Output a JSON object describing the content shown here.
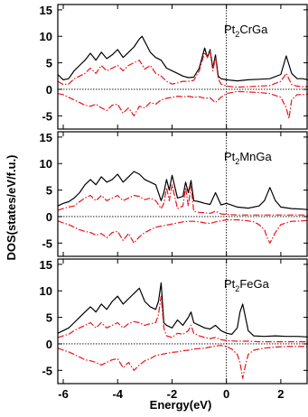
{
  "chart_data": {
    "type": "line",
    "xlabel": "Energy(eV)",
    "ylabel": "DOS(states/eV/f.u.)",
    "xlim": [
      -6.2,
      3.0
    ],
    "xticks": [
      -6,
      -4,
      -2,
      0,
      2
    ],
    "yticks": [
      -5,
      0,
      5,
      10,
      15
    ],
    "fermi_level": 0,
    "colors": {
      "total": "#000000",
      "partial": "#e8141b"
    },
    "panels": [
      {
        "label": {
          "base": "Pt",
          "sub": "2",
          "rest": "CrGa"
        },
        "ylim": [
          -7.5,
          16
        ],
        "series": [
          {
            "role": "total",
            "x": [
              -6.2,
              -6.0,
              -5.8,
              -5.6,
              -5.4,
              -5.2,
              -5.0,
              -4.8,
              -4.6,
              -4.4,
              -4.2,
              -4.0,
              -3.8,
              -3.6,
              -3.4,
              -3.2,
              -3.1,
              -3.0,
              -2.8,
              -2.6,
              -2.4,
              -2.2,
              -2.0,
              -1.8,
              -1.6,
              -1.4,
              -1.2,
              -1.0,
              -0.8,
              -0.7,
              -0.6,
              -0.5,
              -0.4,
              -0.3,
              -0.2,
              0.0,
              0.4,
              0.8,
              1.2,
              1.6,
              2.0,
              2.2,
              2.4,
              2.6,
              2.8,
              3.0
            ],
            "y": [
              2.8,
              1.8,
              2.0,
              3.5,
              4.5,
              5.5,
              6.8,
              5.5,
              7.0,
              5.8,
              6.5,
              7.5,
              6.0,
              7.0,
              8.0,
              9.5,
              10.0,
              9.0,
              7.0,
              6.0,
              5.5,
              4.0,
              3.5,
              3.0,
              2.5,
              2.2,
              2.3,
              4.0,
              7.8,
              6.0,
              7.5,
              4.0,
              6.5,
              2.5,
              2.0,
              1.8,
              1.6,
              1.8,
              1.9,
              2.0,
              2.8,
              6.3,
              3.0,
              2.0,
              2.0,
              1.8
            ]
          },
          {
            "role": "partial",
            "x": [
              -6.2,
              -6.0,
              -5.8,
              -5.6,
              -5.4,
              -5.2,
              -5.0,
              -4.8,
              -4.6,
              -4.4,
              -4.2,
              -4.0,
              -3.8,
              -3.6,
              -3.4,
              -3.2,
              -3.0,
              -2.8,
              -2.6,
              -2.4,
              -2.2,
              -2.0,
              -1.8,
              -1.6,
              -1.4,
              -1.2,
              -1.0,
              -0.8,
              -0.7,
              -0.6,
              -0.5,
              -0.4,
              -0.3,
              -0.2,
              0.0,
              0.4,
              0.8,
              1.2,
              1.6,
              2.0,
              2.2,
              2.4,
              2.6,
              2.8,
              3.0
            ],
            "y": [
              1.5,
              0.9,
              1.0,
              2.0,
              2.5,
              3.0,
              4.0,
              3.0,
              4.5,
              3.5,
              4.0,
              4.5,
              3.5,
              4.5,
              5.0,
              5.5,
              3.8,
              4.5,
              3.0,
              2.5,
              1.5,
              1.0,
              1.2,
              1.5,
              1.5,
              1.7,
              3.5,
              7.0,
              6.0,
              7.2,
              3.5,
              6.0,
              2.0,
              1.0,
              0.6,
              0.4,
              0.5,
              0.6,
              0.7,
              1.5,
              3.0,
              0.9,
              0.6,
              0.5,
              0.5
            ]
          },
          {
            "role": "partial",
            "x": [
              -6.2,
              -6.0,
              -5.8,
              -5.6,
              -5.4,
              -5.2,
              -5.0,
              -4.8,
              -4.6,
              -4.4,
              -4.2,
              -4.0,
              -3.8,
              -3.6,
              -3.4,
              -3.2,
              -3.0,
              -2.8,
              -2.6,
              -2.4,
              -2.2,
              -2.0,
              -1.8,
              -1.6,
              -1.4,
              -1.2,
              -1.0,
              -0.8,
              -0.6,
              -0.4,
              -0.2,
              0.0,
              0.4,
              0.8,
              1.2,
              1.6,
              2.0,
              2.2,
              2.3,
              2.4,
              2.6,
              2.8,
              3.0
            ],
            "y": [
              -0.8,
              -1.0,
              -1.5,
              -2.0,
              -2.5,
              -3.0,
              -3.2,
              -2.8,
              -3.5,
              -4.0,
              -3.0,
              -2.8,
              -4.5,
              -3.5,
              -5.0,
              -3.2,
              -3.5,
              -2.5,
              -2.8,
              -2.0,
              -1.7,
              -1.5,
              -1.3,
              -1.4,
              -1.3,
              -1.5,
              -1.4,
              -1.7,
              -1.6,
              -2.5,
              -1.5,
              -0.8,
              -0.4,
              -0.5,
              -0.6,
              -0.8,
              -1.5,
              -3.5,
              -5.5,
              -2.0,
              -1.0,
              -1.0,
              -0.9
            ]
          }
        ]
      },
      {
        "label": {
          "base": "Pt",
          "sub": "2",
          "rest": "MnGa"
        },
        "ylim": [
          -7.5,
          16
        ],
        "series": [
          {
            "role": "total",
            "x": [
              -6.2,
              -6.0,
              -5.8,
              -5.6,
              -5.4,
              -5.2,
              -5.0,
              -4.8,
              -4.6,
              -4.4,
              -4.2,
              -4.0,
              -3.8,
              -3.6,
              -3.4,
              -3.2,
              -3.0,
              -2.8,
              -2.6,
              -2.4,
              -2.3,
              -2.2,
              -2.1,
              -2.0,
              -1.8,
              -1.6,
              -1.5,
              -1.4,
              -1.3,
              -1.2,
              -1.0,
              -0.8,
              -0.6,
              -0.4,
              -0.2,
              0.0,
              0.4,
              0.8,
              1.2,
              1.4,
              1.6,
              1.8,
              2.0,
              2.4,
              2.8,
              3.0
            ],
            "y": [
              2.0,
              2.5,
              2.8,
              3.5,
              4.5,
              6.0,
              7.0,
              6.0,
              7.5,
              6.5,
              7.0,
              8.0,
              6.5,
              7.5,
              8.5,
              8.0,
              7.0,
              6.5,
              6.0,
              3.0,
              4.5,
              7.0,
              5.0,
              7.8,
              3.5,
              3.8,
              6.5,
              4.5,
              6.8,
              3.0,
              2.8,
              2.5,
              2.3,
              4.5,
              2.2,
              2.5,
              1.8,
              1.6,
              2.0,
              3.0,
              5.5,
              3.0,
              1.8,
              1.5,
              1.4,
              1.3
            ]
          },
          {
            "role": "partial",
            "x": [
              -6.2,
              -6.0,
              -5.8,
              -5.6,
              -5.4,
              -5.2,
              -5.0,
              -4.8,
              -4.6,
              -4.4,
              -4.2,
              -4.0,
              -3.8,
              -3.6,
              -3.4,
              -3.2,
              -3.0,
              -2.8,
              -2.6,
              -2.4,
              -2.3,
              -2.2,
              -2.1,
              -2.0,
              -1.8,
              -1.6,
              -1.5,
              -1.4,
              -1.3,
              -1.2,
              -1.0,
              -0.8,
              -0.6,
              -0.4,
              -0.2,
              0.0,
              0.4,
              0.8,
              1.2,
              1.6,
              2.0,
              2.4,
              2.8,
              3.0
            ],
            "y": [
              1.2,
              1.5,
              1.8,
              2.0,
              2.8,
              3.5,
              4.0,
              3.0,
              4.0,
              3.0,
              3.5,
              4.0,
              3.0,
              3.5,
              4.0,
              3.8,
              3.2,
              3.5,
              3.0,
              1.5,
              2.5,
              5.5,
              3.0,
              6.0,
              1.5,
              2.0,
              5.5,
              2.0,
              5.8,
              1.0,
              0.8,
              0.7,
              0.6,
              1.0,
              0.5,
              0.4,
              0.3,
              0.3,
              0.3,
              0.3,
              0.3,
              0.3,
              0.3,
              0.3
            ]
          },
          {
            "role": "partial",
            "x": [
              -6.2,
              -6.0,
              -5.8,
              -5.6,
              -5.4,
              -5.2,
              -5.0,
              -4.8,
              -4.6,
              -4.4,
              -4.2,
              -4.0,
              -3.8,
              -3.6,
              -3.4,
              -3.2,
              -3.0,
              -2.8,
              -2.6,
              -2.4,
              -2.2,
              -2.0,
              -1.8,
              -1.6,
              -1.4,
              -1.2,
              -1.0,
              -0.8,
              -0.6,
              -0.4,
              -0.2,
              0.0,
              0.4,
              0.8,
              1.0,
              1.2,
              1.4,
              1.5,
              1.6,
              1.8,
              2.0,
              2.4,
              2.8,
              3.0
            ],
            "y": [
              -0.8,
              -1.2,
              -1.5,
              -2.0,
              -2.5,
              -2.8,
              -3.0,
              -3.5,
              -3.2,
              -4.0,
              -3.0,
              -2.8,
              -4.5,
              -3.2,
              -5.0,
              -3.8,
              -3.0,
              -2.5,
              -2.0,
              -1.8,
              -1.6,
              -1.4,
              -1.2,
              -1.0,
              -0.9,
              -0.9,
              -1.0,
              -1.2,
              -1.3,
              -1.0,
              -0.8,
              -0.6,
              -0.6,
              -0.8,
              -1.0,
              -1.5,
              -2.5,
              -4.0,
              -5.0,
              -3.0,
              -1.5,
              -0.9,
              -0.8,
              -0.7
            ]
          }
        ]
      },
      {
        "label": {
          "base": "Pt",
          "sub": "2",
          "rest": "FeGa"
        },
        "ylim": [
          -7.5,
          16
        ],
        "series": [
          {
            "role": "total",
            "x": [
              -6.2,
              -6.0,
              -5.8,
              -5.6,
              -5.4,
              -5.2,
              -5.0,
              -4.8,
              -4.6,
              -4.4,
              -4.2,
              -4.0,
              -3.8,
              -3.6,
              -3.4,
              -3.2,
              -3.0,
              -2.8,
              -2.6,
              -2.5,
              -2.4,
              -2.3,
              -2.2,
              -2.0,
              -1.8,
              -1.6,
              -1.4,
              -1.3,
              -1.2,
              -1.0,
              -0.8,
              -0.6,
              -0.4,
              -0.2,
              0.0,
              0.2,
              0.4,
              0.5,
              0.6,
              0.7,
              0.8,
              1.0,
              1.4,
              1.8,
              2.2,
              2.6,
              3.0
            ],
            "y": [
              2.0,
              2.5,
              3.0,
              4.0,
              5.0,
              6.0,
              7.0,
              6.0,
              7.5,
              6.5,
              8.0,
              9.0,
              7.5,
              8.5,
              9.5,
              10.5,
              8.0,
              7.0,
              6.5,
              8.0,
              11.5,
              4.0,
              3.5,
              3.0,
              4.5,
              3.5,
              5.0,
              6.0,
              4.0,
              3.5,
              3.0,
              2.8,
              3.5,
              2.5,
              2.0,
              1.8,
              3.0,
              6.0,
              7.5,
              5.0,
              2.5,
              1.5,
              1.4,
              1.5,
              1.4,
              1.4,
              1.3
            ]
          },
          {
            "role": "partial",
            "x": [
              -6.2,
              -6.0,
              -5.8,
              -5.6,
              -5.4,
              -5.2,
              -5.0,
              -4.8,
              -4.6,
              -4.4,
              -4.2,
              -4.0,
              -3.8,
              -3.6,
              -3.4,
              -3.2,
              -3.0,
              -2.8,
              -2.6,
              -2.5,
              -2.4,
              -2.3,
              -2.2,
              -2.0,
              -1.8,
              -1.6,
              -1.4,
              -1.3,
              -1.2,
              -1.0,
              -0.8,
              -0.6,
              -0.4,
              -0.2,
              0.0,
              0.4,
              0.8,
              1.2,
              1.6,
              2.0,
              2.4,
              2.8,
              3.0
            ],
            "y": [
              1.2,
              1.5,
              1.8,
              2.5,
              3.0,
              3.5,
              4.0,
              3.0,
              4.0,
              3.0,
              3.5,
              4.0,
              3.0,
              3.8,
              4.2,
              4.0,
              3.5,
              3.8,
              4.0,
              5.5,
              9.0,
              3.0,
              1.5,
              1.2,
              2.0,
              1.8,
              2.5,
              3.5,
              2.0,
              1.5,
              1.2,
              1.0,
              1.2,
              0.8,
              0.6,
              0.5,
              0.5,
              0.4,
              0.4,
              0.4,
              0.4,
              0.4,
              0.4
            ]
          },
          {
            "role": "partial",
            "x": [
              -6.2,
              -6.0,
              -5.8,
              -5.6,
              -5.4,
              -5.2,
              -5.0,
              -4.8,
              -4.6,
              -4.4,
              -4.2,
              -4.0,
              -3.8,
              -3.6,
              -3.4,
              -3.2,
              -3.0,
              -2.8,
              -2.6,
              -2.4,
              -2.2,
              -2.0,
              -1.8,
              -1.6,
              -1.4,
              -1.2,
              -1.0,
              -0.8,
              -0.6,
              -0.4,
              -0.2,
              0.0,
              0.2,
              0.4,
              0.5,
              0.6,
              0.7,
              0.8,
              1.0,
              1.4,
              1.8,
              2.2,
              2.6,
              3.0
            ],
            "y": [
              -0.8,
              -1.2,
              -1.5,
              -2.0,
              -2.5,
              -3.0,
              -3.2,
              -3.5,
              -4.0,
              -3.5,
              -3.0,
              -2.8,
              -4.5,
              -3.5,
              -5.0,
              -4.0,
              -3.2,
              -2.8,
              -2.2,
              -2.0,
              -1.8,
              -1.6,
              -1.5,
              -1.3,
              -1.2,
              -1.0,
              -0.9,
              -0.8,
              -0.6,
              -0.4,
              -0.3,
              -0.5,
              -1.0,
              -2.0,
              -3.5,
              -6.5,
              -4.0,
              -2.0,
              -1.2,
              -0.8,
              -0.6,
              -0.5,
              -0.5,
              -0.5
            ]
          }
        ]
      }
    ]
  }
}
